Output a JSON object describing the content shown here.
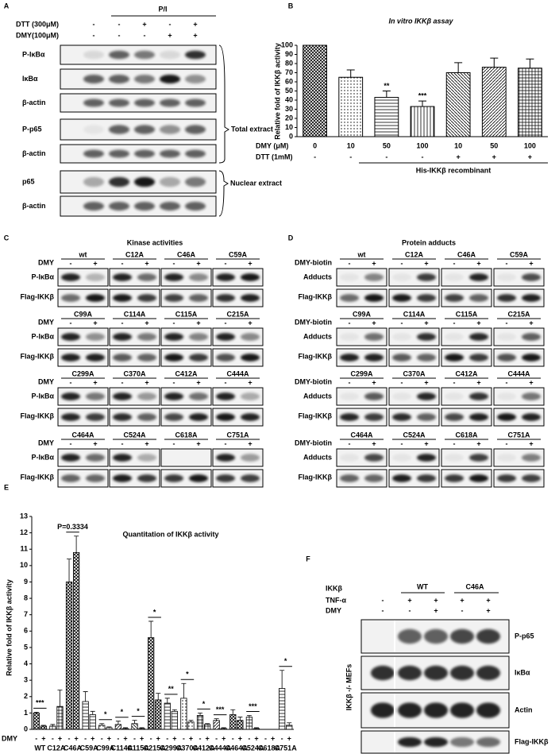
{
  "panel_labels": [
    "A",
    "B",
    "C",
    "D",
    "E",
    "F"
  ],
  "panel_a": {
    "group": "P/I",
    "treatments": [
      {
        "name": "DTT (300μM)",
        "signs": [
          "-",
          "-",
          "+",
          "-",
          "+"
        ]
      },
      {
        "name": "DMY(100μM)",
        "signs": [
          "-",
          "-",
          "-",
          "+",
          "+"
        ]
      }
    ],
    "blots": [
      "P-IκBα",
      "IκBα",
      "β-actin",
      "P-p65",
      "β-actin",
      "p65",
      "β-actin"
    ],
    "brackets": [
      "Total extract",
      "Nuclear extract"
    ]
  },
  "chart_data": [
    {
      "type": "bar",
      "title": "In vitro IKKβ assay",
      "y_label": "Relative fold of IKKβ activity",
      "category_axis_label": "DMY (μM)",
      "categories": [
        "0",
        "10",
        "50",
        "100",
        "10",
        "50",
        "100"
      ],
      "values": [
        100,
        65,
        43,
        33,
        70,
        76,
        75
      ],
      "errors": [
        null,
        8,
        7,
        6,
        11,
        10,
        10
      ],
      "significance": [
        null,
        null,
        "**",
        "***",
        null,
        null,
        null
      ],
      "color": "#000000",
      "extra_rows": [
        {
          "name": "DTT (1mM)",
          "signs": [
            "-",
            "-",
            "-",
            "-",
            "+",
            "+",
            "+"
          ]
        }
      ],
      "group_label": "His-IKKβ recombinant",
      "ylim": [
        0,
        100
      ],
      "yticks": [
        0,
        10,
        20,
        30,
        40,
        50,
        60,
        70,
        80,
        90,
        100
      ]
    },
    {
      "type": "bar",
      "title": "Quantitation of IKKβ activity",
      "y_label": "Relative fold of IKKβ activity",
      "treatment_label": "DMY",
      "categories": [
        "WT",
        "C12A",
        "C46A",
        "C59A",
        "C99A",
        "C114A",
        "C115A",
        "C215A",
        "C299A",
        "C370A",
        "C412A",
        "C444A",
        "C464A",
        "C524A",
        "C618A",
        "C751A"
      ],
      "series": [
        {
          "name": "-",
          "color": "#000000",
          "values": [
            1.0,
            0.2,
            9.0,
            1.7,
            0.25,
            0.3,
            0.35,
            5.6,
            1.6,
            1.9,
            0.85,
            0.55,
            0.9,
            0.75,
            0,
            2.5
          ],
          "errors": [
            0.05,
            0.1,
            1.4,
            0.6,
            0.1,
            0.2,
            0.2,
            1.0,
            0.3,
            0.9,
            0.15,
            0.1,
            0.3,
            0.1,
            0,
            1.1
          ]
        },
        {
          "name": "+",
          "color": "#000000",
          "values": [
            0.2,
            1.4,
            10.8,
            0.9,
            0.1,
            0.05,
            0.05,
            1.8,
            1.1,
            0.45,
            0.3,
            0.05,
            0.55,
            0.05,
            0,
            0.25
          ],
          "errors": [
            0.05,
            1.0,
            1.0,
            0.2,
            0.05,
            0.05,
            0.05,
            0.4,
            0.1,
            0.1,
            0.05,
            0.05,
            0.2,
            0.05,
            0,
            0.15
          ]
        }
      ],
      "significance": [
        "***",
        null,
        "P=0.3334",
        null,
        "*",
        "*",
        "*",
        "*",
        "**",
        "*",
        "*",
        "***",
        null,
        "***",
        null,
        "*"
      ],
      "ylim": [
        0,
        13
      ],
      "yticks": [
        0,
        1,
        2,
        3,
        4,
        5,
        6,
        7,
        8,
        9,
        10,
        11,
        12,
        13
      ]
    }
  ],
  "panel_c": {
    "title": "Kinase activities",
    "treatment": "DMY",
    "signs": [
      "-",
      "+"
    ],
    "rows": [
      "P-IκBα",
      "Flag-IKKβ"
    ],
    "mutants": [
      "wt",
      "C12A",
      "C46A",
      "C59A",
      "C99A",
      "C114A",
      "C115A",
      "C215A",
      "C299A",
      "C370A",
      "C412A",
      "C444A",
      "C464A",
      "C524A",
      "C618A",
      "C751A"
    ]
  },
  "panel_d": {
    "title": "Protein adducts",
    "treatment": "DMY-biotin",
    "signs": [
      "-",
      "+"
    ],
    "rows": [
      "Adducts",
      "Flag-IKKβ"
    ],
    "mutants": [
      "wt",
      "C12A",
      "C46A",
      "C59A",
      "C99A",
      "C114A",
      "C115A",
      "C215A",
      "C299A",
      "C370A",
      "C412A",
      "C444A",
      "C464A",
      "C524A",
      "C618A",
      "C751A"
    ]
  },
  "panel_f": {
    "genotype_label": "IKKβ",
    "groups": [
      "WT",
      "C46A"
    ],
    "treatments": [
      {
        "name": "TNF-α",
        "signs": [
          "-",
          "+",
          "+",
          "+",
          "+"
        ]
      },
      {
        "name": "DMY",
        "signs": [
          "-",
          "-",
          "+",
          "-",
          "+"
        ]
      }
    ],
    "blots": [
      "P-p65",
      "IκBα",
      "Actin",
      "Flag-IKKβ"
    ],
    "cell_line": "IKKβ -/- MEFs"
  }
}
